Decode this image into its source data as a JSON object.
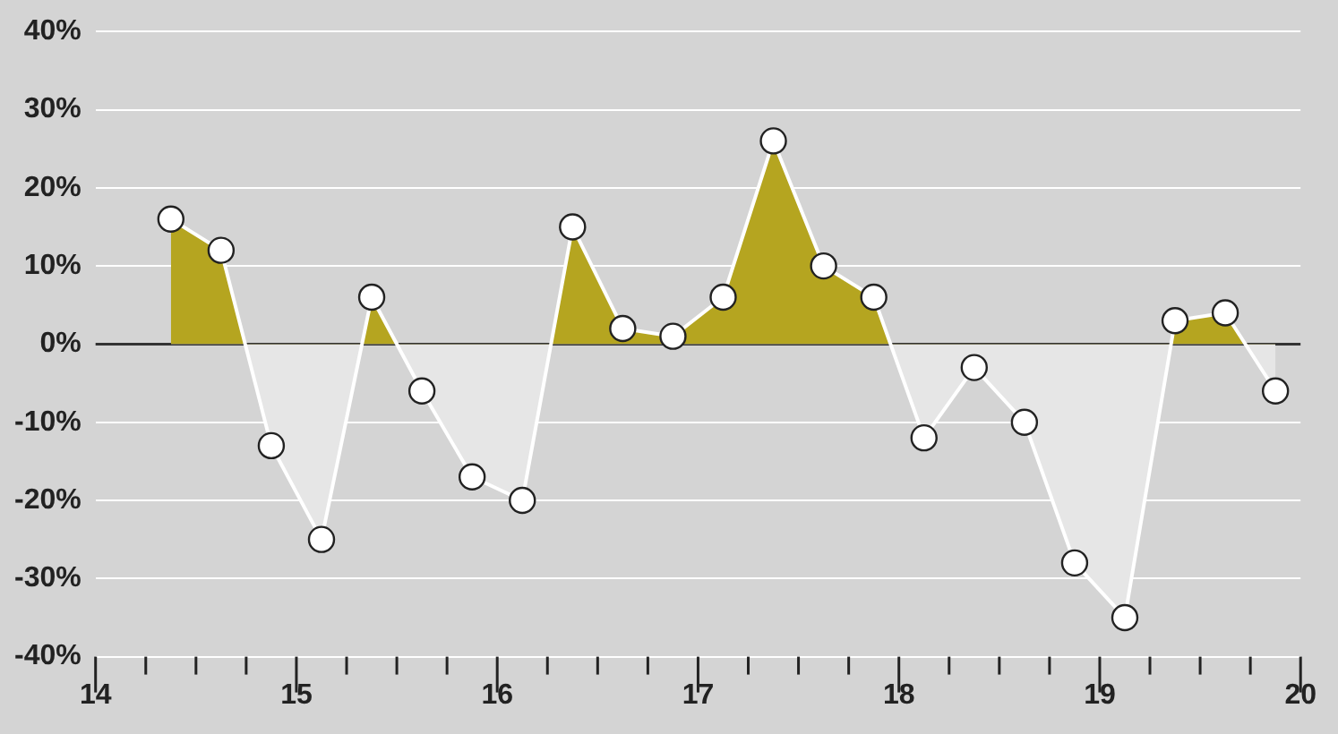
{
  "chart_data": {
    "type": "area",
    "x": [
      14.375,
      14.625,
      14.875,
      15.125,
      15.375,
      15.625,
      15.875,
      16.125,
      16.375,
      16.625,
      16.875,
      17.125,
      17.375,
      17.625,
      17.875,
      18.125,
      18.375,
      18.625,
      18.875,
      19.125,
      19.375,
      19.625,
      19.875
    ],
    "series": [
      {
        "color": "#b5a520",
        "values": [
          16,
          12,
          -13,
          -25,
          6,
          -6,
          -17,
          -20,
          15,
          2,
          1,
          6,
          26,
          10,
          6,
          -12,
          -3,
          -10,
          -28,
          -35,
          3,
          4,
          -6
        ]
      }
    ],
    "xlim": [
      14,
      20
    ],
    "xticks": [
      14,
      {
        "value": 14.25,
        "label": null
      },
      {
        "value": 14.5,
        "label": null
      },
      {
        "value": 14.75,
        "label": null
      },
      15,
      {
        "value": 15.25,
        "label": null
      },
      {
        "value": 15.5,
        "label": null
      },
      {
        "value": 15.75,
        "label": null
      },
      16,
      {
        "value": 16.25,
        "label": null
      },
      {
        "value": 16.5,
        "label": null
      },
      {
        "value": 16.75,
        "label": null
      },
      17,
      {
        "value": 17.25,
        "label": null
      },
      {
        "value": 17.5,
        "label": null
      },
      {
        "value": 17.75,
        "label": null
      },
      18,
      {
        "value": 18.25,
        "label": null
      },
      {
        "value": 18.5,
        "label": null
      },
      {
        "value": 18.75,
        "label": null
      },
      19,
      {
        "value": 19.25,
        "label": null
      },
      {
        "value": 19.5,
        "label": null
      },
      {
        "value": 19.75,
        "label": null
      },
      20
    ],
    "ylim": [
      -40,
      40
    ],
    "yticks": [
      {
        "value": -40,
        "label": "-40%"
      },
      {
        "value": -30,
        "label": "-30%"
      },
      {
        "value": -20,
        "label": "-20%"
      },
      {
        "value": -10,
        "label": "-10%"
      },
      {
        "value": 0,
        "label": "0%"
      },
      {
        "value": 10,
        "label": "10%"
      },
      {
        "value": 20,
        "label": "20%"
      },
      {
        "value": 30,
        "label": "30%"
      },
      {
        "value": 40,
        "label": "40%"
      }
    ],
    "ref_lines": [
      {
        "axis": "y",
        "value": 0,
        "color": "#333333"
      }
    ],
    "grid": "y",
    "marker": "circle"
  }
}
